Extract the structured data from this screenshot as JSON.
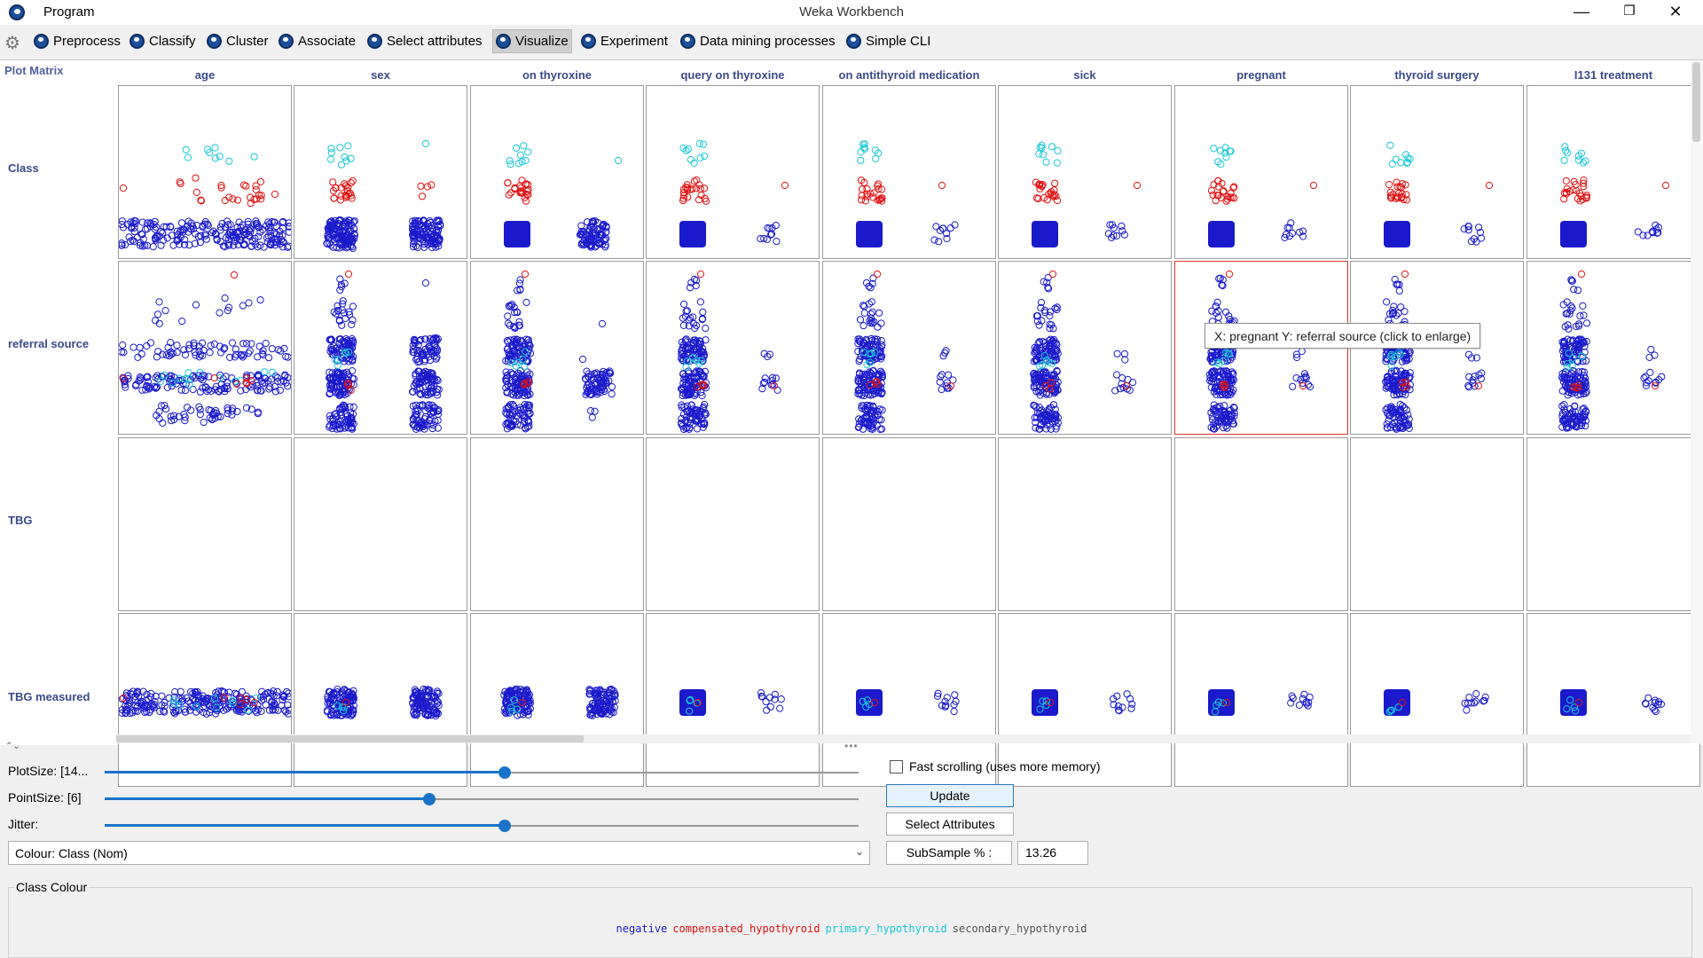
{
  "window": {
    "title": "Weka Workbench",
    "menu_program": "Program",
    "minimize": "—",
    "maximize": "❐",
    "close": "✕"
  },
  "toolbar": {
    "tabs": [
      {
        "label": "Preprocess",
        "active": false
      },
      {
        "label": "Classify",
        "active": false
      },
      {
        "label": "Cluster",
        "active": false
      },
      {
        "label": "Associate",
        "active": false
      },
      {
        "label": "Select attributes",
        "active": false
      },
      {
        "label": "Visualize",
        "active": true
      },
      {
        "label": "Experiment",
        "active": false
      },
      {
        "label": "Data mining processes",
        "active": false
      },
      {
        "label": "Simple CLI",
        "active": false
      }
    ]
  },
  "matrix": {
    "title": "Plot Matrix",
    "columns": [
      "age",
      "sex",
      "on thyroxine",
      "query on thyroxine",
      "on antithyroid medication",
      "sick",
      "pregnant",
      "thyroid surgery",
      "I131 treatment"
    ],
    "rows": [
      "Class",
      "referral source",
      "TBG",
      "TBG measured"
    ],
    "tooltip": "X: pregnant Y: referral source (click to enlarge)"
  },
  "controls": {
    "plot_size_label": "PlotSize: [14...",
    "point_size_label": "PointSize: [6]",
    "jitter_label": "Jitter:",
    "plot_size_value": 0.53,
    "point_size_value": 0.43,
    "jitter_value": 0.53,
    "fast_scrolling_label": "Fast scrolling (uses more memory)",
    "fast_scrolling_checked": false,
    "update_label": "Update",
    "select_attributes_label": "Select Attributes",
    "colour_label": "Colour: Class  (Nom)",
    "subsample_label": "SubSample % :",
    "subsample_value": "13.26"
  },
  "class_colour": {
    "title": "Class Colour",
    "classes": [
      {
        "name": "negative",
        "color": "#1a1acc"
      },
      {
        "name": "compensated_hypothyroid",
        "color": "#e01010"
      },
      {
        "name": "primary_hypothyroid",
        "color": "#18c8d8"
      },
      {
        "name": "secondary_hypothyroid",
        "color": "#555555"
      }
    ]
  },
  "colors": {
    "accent": "#1a73c9",
    "negative": "#1a1acc",
    "compensated": "#e01010",
    "primary": "#18c8d8"
  }
}
